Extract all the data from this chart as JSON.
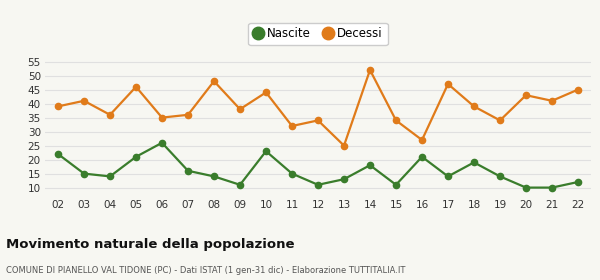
{
  "years": [
    "02",
    "03",
    "04",
    "05",
    "06",
    "07",
    "08",
    "09",
    "10",
    "11",
    "12",
    "13",
    "14",
    "15",
    "16",
    "17",
    "18",
    "19",
    "20",
    "21",
    "22"
  ],
  "nascite": [
    22,
    15,
    14,
    21,
    26,
    16,
    14,
    11,
    23,
    15,
    11,
    13,
    18,
    11,
    21,
    14,
    19,
    14,
    10,
    10,
    12
  ],
  "decessi": [
    39,
    41,
    36,
    46,
    35,
    36,
    48,
    38,
    44,
    32,
    34,
    25,
    52,
    34,
    27,
    47,
    39,
    34,
    43,
    41,
    45
  ],
  "nascite_color": "#3a7d2c",
  "decessi_color": "#e07b1a",
  "background_color": "#f7f7f2",
  "grid_color": "#e0e0e0",
  "title": "Movimento naturale della popolazione",
  "subtitle": "COMUNE DI PIANELLO VAL TIDONE (PC) - Dati ISTAT (1 gen-31 dic) - Elaborazione TUTTITALIA.IT",
  "legend_nascite": "Nascite",
  "legend_decessi": "Decessi",
  "ylim_min": 7,
  "ylim_max": 57,
  "yticks": [
    10,
    15,
    20,
    25,
    30,
    35,
    40,
    45,
    50,
    55
  ],
  "marker_size": 4.5,
  "line_width": 1.6
}
